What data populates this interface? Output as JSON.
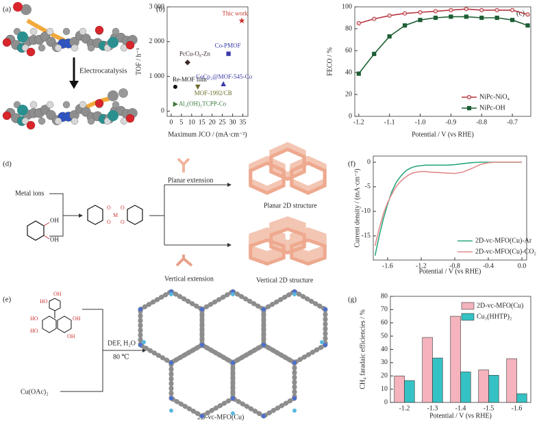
{
  "panels": {
    "a": {
      "label": "(a)",
      "text": "Electrocatalysis"
    },
    "d": {
      "label": "(d)",
      "metal": "Metal ions",
      "catechol_labels": [
        "OH",
        "OH"
      ],
      "complex_labels": [
        "O",
        "O",
        "M",
        "O",
        "O"
      ],
      "planar_extension": "Planar extension",
      "planar_structure": "Planar 2D structure",
      "vertical_extension": "Vertical extension",
      "vertical_structure": "Vertical 2D structure"
    },
    "e": {
      "label": "(e)",
      "hhtp_labels": [
        "OH",
        "HO",
        "HO",
        "OH",
        "HO",
        "OH"
      ],
      "conditions": [
        "DEF, H₂O",
        "80 ℃"
      ],
      "copper": "Cu(OAc)₂",
      "product": "2D-vc-MFO(Cu)"
    }
  },
  "chart_data": [
    {
      "type": "scatter",
      "panel_label": "(b)",
      "xlabel": "Maximum JCO / (mA·cm⁻²)",
      "ylabel": "TOF / h⁻¹",
      "xlim": [
        -2,
        37.5
      ],
      "ylim": [
        -150,
        3000
      ],
      "xticks": [
        0,
        5,
        10,
        15,
        20,
        25,
        30,
        35
      ],
      "yticks": [
        0,
        {
          "value": 1000,
          "label": "1 000"
        },
        {
          "value": 2000,
          "label": "2 000"
        },
        {
          "value": 3000,
          "label": "3 000"
        }
      ],
      "points": [
        {
          "label": "Al₂(OH)₂TCPP-Co",
          "x": 2,
          "y": 200,
          "color": "#3c7a3c",
          "marker": "triangle-right"
        },
        {
          "label": "Re-MOF film",
          "x": 2,
          "y": 700,
          "color": "#111111",
          "marker": "circle"
        },
        {
          "label": "PcCu-O₈-Zn",
          "x": 8,
          "y": 1400,
          "color": "#3a2a2a",
          "marker": "diamond"
        },
        {
          "label": "MOF-1992/CB",
          "x": 13,
          "y": 700,
          "color": "#6b6b2a",
          "marker": "triangle-down"
        },
        {
          "label": "Co-PMOF",
          "x": 28,
          "y": 1650,
          "color": "#3a3aa8",
          "marker": "square"
        },
        {
          "label": "CoCp₂@MOF-545-Co",
          "x": 25.5,
          "y": 780,
          "color": "#3a3aa8",
          "marker": "triangle"
        },
        {
          "label": "Thic work",
          "x": 34.5,
          "y": 2600,
          "color": "#c8322d",
          "marker": "star"
        }
      ]
    },
    {
      "type": "line",
      "panel_label": "(c)",
      "xlabel": "Potential / V (vs RHE)",
      "ylabel": "FECO / %",
      "xlim": [
        -1.213,
        -0.64
      ],
      "ylim": [
        0,
        100
      ],
      "xticks": [
        -1.2,
        -1.1,
        {
          "value": -1,
          "label": "-1.0"
        },
        -0.9,
        -0.8,
        -0.7
      ],
      "yticks": [
        0,
        20,
        40,
        60,
        80,
        100
      ],
      "legend": "lower right",
      "x": [
        -1.2,
        -1.15,
        -1.1,
        -1.05,
        -1.0,
        -0.95,
        -0.9,
        -0.85,
        -0.8,
        -0.75,
        -0.7,
        -0.65
      ],
      "series": [
        {
          "name": "NiPc-NiO₄",
          "color": "#b5333d",
          "marker": "circle",
          "values": [
            85,
            89,
            92,
            94,
            95,
            96,
            97,
            98,
            97,
            97,
            97,
            93
          ]
        },
        {
          "name": "NiPc-OH",
          "color": "#1d5e34",
          "marker": "square",
          "values": [
            39,
            57,
            73,
            83,
            88,
            90,
            91,
            91,
            90,
            90,
            88,
            83
          ]
        }
      ]
    },
    {
      "type": "line",
      "panel_label": "(f)",
      "xlabel": "Potential / V (vs RHE)",
      "ylabel": "Current density / (mA·cm⁻²)",
      "xlim": [
        -1.771,
        0.057
      ],
      "ylim": [
        -19.9,
        1.25
      ],
      "xticks": [
        -1.6,
        -1.2,
        -0.8,
        -0.4,
        {
          "value": 0,
          "label": "0.0"
        }
      ],
      "yticks": [
        0,
        -5,
        -10,
        -15
      ],
      "legend": "lower right",
      "x": [
        -1.75,
        -1.7,
        -1.65,
        -1.6,
        -1.55,
        -1.5,
        -1.45,
        -1.4,
        -1.35,
        -1.3,
        -1.25,
        -1.2,
        -1.15,
        -1.1,
        -1.0,
        -0.9,
        -0.8,
        -0.7,
        -0.6,
        -0.5,
        -0.4,
        -0.3,
        -0.2,
        -0.1,
        0.0
      ],
      "series": [
        {
          "name": "2D-vc-MFO(Cu)-Ar",
          "color": "#2aa87e",
          "marker": "none",
          "values": [
            -19,
            -15,
            -11.5,
            -8.5,
            -6,
            -4.2,
            -3,
            -2,
            -1.4,
            -1,
            -0.8,
            -0.7,
            -0.6,
            -0.6,
            -0.6,
            -0.6,
            -0.5,
            -0.3,
            -0.1,
            0,
            0,
            0,
            0,
            0,
            0
          ]
        },
        {
          "name": "2D-vc-MFO(Cu)-CO₂",
          "color": "#e2898c",
          "marker": "none",
          "values": [
            -17,
            -13.5,
            -10.5,
            -8.2,
            -6.5,
            -5,
            -4,
            -3.2,
            -2.6,
            -2.2,
            -2,
            -1.9,
            -1.9,
            -2,
            -2.1,
            -2.2,
            -2.3,
            -2,
            -1.3,
            -0.5,
            -0.1,
            0,
            0,
            0,
            0
          ]
        }
      ]
    },
    {
      "type": "bar",
      "panel_label": "(g)",
      "xlabel": "Potential / V (vs RHE)",
      "ylabel": "CH₄ faradaic efficiencies / %",
      "categories": [
        "-1.2",
        "-1.3",
        "-1.4",
        "-1.5",
        "-1.6"
      ],
      "ylim": [
        0,
        80
      ],
      "yticks": [
        0,
        10,
        20,
        30,
        40,
        50,
        60,
        70,
        80
      ],
      "legend": "upper right",
      "series": [
        {
          "name": "2D-vc-MFO(Cu)",
          "color": "#f4b3bd",
          "values": [
            20,
            49,
            65,
            24.5,
            33
          ]
        },
        {
          "name": "Cu₃(HHTP)₂",
          "color": "#35c2c4",
          "values": [
            16.5,
            33.5,
            23,
            20.5,
            6.5
          ]
        }
      ]
    }
  ]
}
